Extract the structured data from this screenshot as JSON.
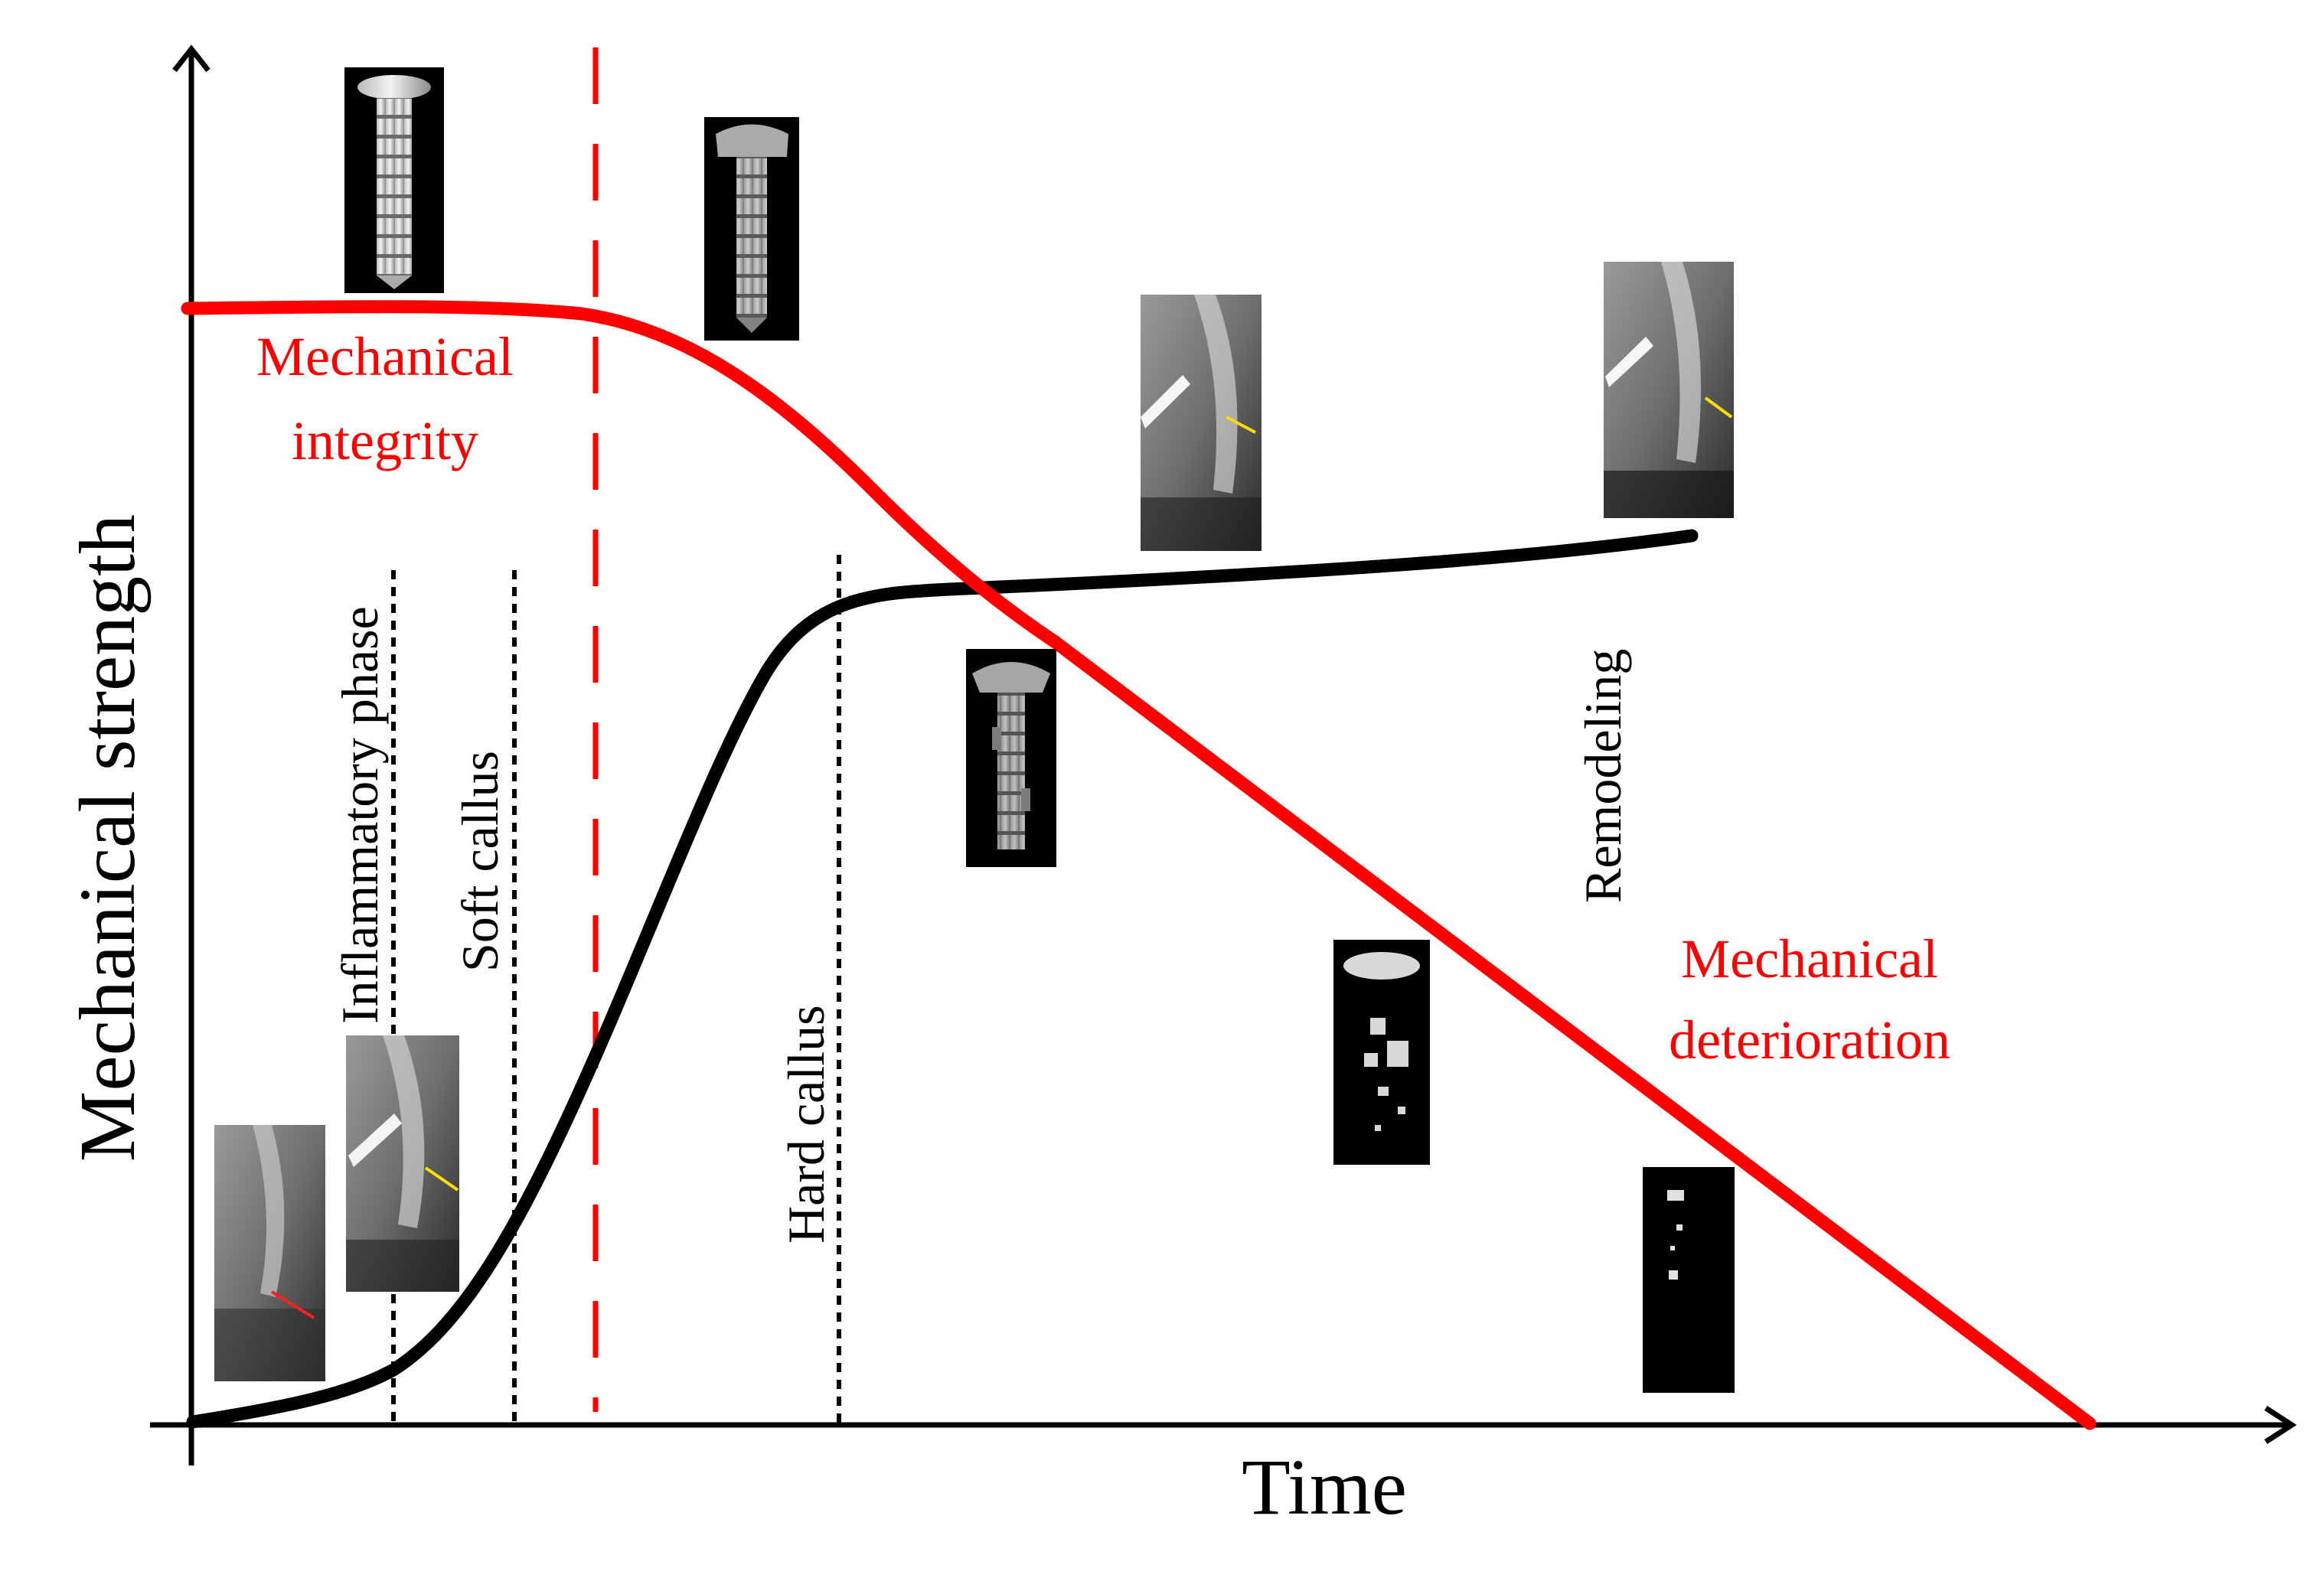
{
  "axes": {
    "y_label": "Mechanical strength",
    "x_label": "Time"
  },
  "curves": {
    "screw": {
      "label_top_line1": "Mechanical",
      "label_top_line2": "integrity",
      "label_bottom_line1": "Mechanical",
      "label_bottom_line2": "deterioration",
      "color": "#ff0000"
    },
    "bone": {
      "color": "#000000"
    }
  },
  "phases": {
    "inflammatory": "Inflammatory phase",
    "soft_callus": "Soft callus",
    "hard_callus": "Hard callus",
    "remodeling": "Remodeling"
  },
  "thumbnails": {
    "screw_intact": "screw-implant-icon",
    "screw_early": "screw-implant-icon",
    "screw_mid": "screw-implant-icon",
    "screw_late": "screw-fragments-icon",
    "screw_remnant": "screw-fragments-icon",
    "xray_fracture": "bone-xray-icon",
    "xray_soft": "bone-xray-icon",
    "xray_hard": "bone-xray-icon",
    "xray_remodel": "bone-xray-icon"
  }
}
